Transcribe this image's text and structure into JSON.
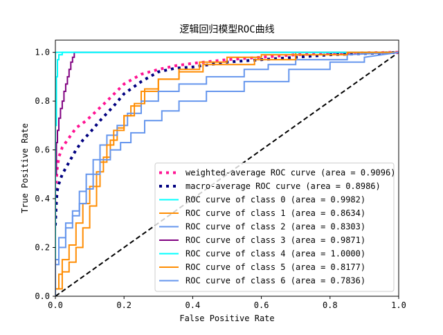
{
  "chart_data": {
    "type": "line",
    "title": "逻辑回归模型ROC曲线",
    "xlabel": "False Positive Rate",
    "ylabel": "True Positive Rate",
    "xlim": [
      0.0,
      1.0
    ],
    "ylim": [
      0.0,
      1.05
    ],
    "grid": false,
    "legend_position": "lower-right",
    "xticks": [
      {
        "value": 0.0,
        "label": "0.0"
      },
      {
        "value": 0.2,
        "label": "0.2"
      },
      {
        "value": 0.4,
        "label": "0.4"
      },
      {
        "value": 0.6,
        "label": "0.6"
      },
      {
        "value": 0.8,
        "label": "0.8"
      },
      {
        "value": 1.0,
        "label": "1.0"
      }
    ],
    "yticks": [
      {
        "value": 0.0,
        "label": "0.0"
      },
      {
        "value": 0.2,
        "label": "0.2"
      },
      {
        "value": 0.4,
        "label": "0.4"
      },
      {
        "value": 0.6,
        "label": "0.6"
      },
      {
        "value": 0.8,
        "label": "0.8"
      },
      {
        "value": 1.0,
        "label": "1.0"
      }
    ],
    "diagonal": {
      "x": [
        0,
        1
      ],
      "y": [
        0,
        1
      ],
      "color": "#000000",
      "dash": "dashed"
    },
    "series": [
      {
        "name": "weighted-average ROC curve (area = 0.9096)",
        "color": "#ff1493",
        "style": "dotted",
        "step": false,
        "x": [
          0.0,
          0.002,
          0.005,
          0.01,
          0.02,
          0.04,
          0.06,
          0.09,
          0.12,
          0.15,
          0.2,
          0.25,
          0.3,
          0.35,
          0.4,
          0.5,
          0.6,
          0.7,
          0.8,
          0.9,
          1.0
        ],
        "y": [
          0.32,
          0.45,
          0.52,
          0.57,
          0.61,
          0.65,
          0.69,
          0.72,
          0.76,
          0.8,
          0.87,
          0.91,
          0.93,
          0.945,
          0.955,
          0.97,
          0.98,
          0.99,
          0.995,
          0.998,
          1.0
        ]
      },
      {
        "name": "macro-average ROC curve (area = 0.8986)",
        "color": "#000080",
        "style": "dotted",
        "step": false,
        "x": [
          0.0,
          0.002,
          0.005,
          0.01,
          0.02,
          0.04,
          0.06,
          0.08,
          0.1,
          0.13,
          0.17,
          0.2,
          0.25,
          0.3,
          0.35,
          0.4,
          0.5,
          0.6,
          0.7,
          0.8,
          0.9,
          1.0
        ],
        "y": [
          0.29,
          0.36,
          0.43,
          0.46,
          0.5,
          0.55,
          0.6,
          0.64,
          0.67,
          0.72,
          0.78,
          0.83,
          0.88,
          0.92,
          0.935,
          0.94,
          0.96,
          0.97,
          0.98,
          0.99,
          0.995,
          1.0
        ]
      },
      {
        "name": "ROC curve of class 0 (area = 0.9982)",
        "color": "#00ffff",
        "style": "solid",
        "step": true,
        "x": [
          0.0,
          0.0,
          0.003,
          0.003,
          0.006,
          0.006,
          0.01,
          0.01,
          0.02,
          0.02,
          1.0
        ],
        "y": [
          0.0,
          0.7,
          0.7,
          0.9,
          0.9,
          0.97,
          0.97,
          0.99,
          0.99,
          1.0,
          1.0
        ]
      },
      {
        "name": "ROC curve of class 1 (area = 0.8634)",
        "color": "#ff8c00",
        "style": "solid",
        "step": true,
        "x": [
          0.0,
          0.0,
          0.01,
          0.01,
          0.02,
          0.02,
          0.04,
          0.04,
          0.06,
          0.06,
          0.08,
          0.08,
          0.1,
          0.1,
          0.12,
          0.12,
          0.14,
          0.14,
          0.16,
          0.16,
          0.18,
          0.18,
          0.2,
          0.2,
          0.22,
          0.22,
          0.25,
          0.25,
          0.3,
          0.3,
          0.36,
          0.36,
          0.42,
          0.42,
          0.5,
          0.5,
          0.6,
          0.6,
          0.7,
          0.7,
          0.82,
          0.82,
          1.0
        ],
        "y": [
          0.0,
          0.03,
          0.03,
          0.09,
          0.09,
          0.15,
          0.15,
          0.21,
          0.21,
          0.3,
          0.3,
          0.38,
          0.38,
          0.45,
          0.45,
          0.51,
          0.51,
          0.57,
          0.57,
          0.64,
          0.64,
          0.69,
          0.69,
          0.74,
          0.74,
          0.78,
          0.78,
          0.84,
          0.84,
          0.89,
          0.89,
          0.93,
          0.93,
          0.96,
          0.96,
          0.98,
          0.98,
          0.99,
          0.99,
          1.0,
          1.0,
          1.0,
          1.0
        ]
      },
      {
        "name": "ROC curve of class 2 (area = 0.8303)",
        "color": "#6495ed",
        "style": "solid",
        "step": true,
        "x": [
          0.0,
          0.0,
          0.01,
          0.01,
          0.03,
          0.03,
          0.05,
          0.05,
          0.07,
          0.07,
          0.09,
          0.09,
          0.11,
          0.11,
          0.13,
          0.13,
          0.15,
          0.15,
          0.18,
          0.18,
          0.21,
          0.21,
          0.25,
          0.25,
          0.3,
          0.3,
          0.36,
          0.36,
          0.44,
          0.44,
          0.55,
          0.55,
          0.62,
          0.62,
          0.7,
          0.7,
          0.85,
          0.85,
          1.0
        ],
        "y": [
          0.0,
          0.13,
          0.13,
          0.2,
          0.2,
          0.28,
          0.28,
          0.35,
          0.35,
          0.43,
          0.43,
          0.5,
          0.5,
          0.56,
          0.56,
          0.62,
          0.62,
          0.66,
          0.66,
          0.7,
          0.7,
          0.75,
          0.75,
          0.8,
          0.8,
          0.84,
          0.84,
          0.87,
          0.87,
          0.9,
          0.9,
          0.93,
          0.93,
          0.95,
          0.95,
          0.97,
          0.97,
          0.99,
          1.0
        ]
      },
      {
        "name": "ROC curve of class 3 (area = 0.9871)",
        "color": "#800080",
        "style": "solid",
        "step": true,
        "x": [
          0.0,
          0.0,
          0.003,
          0.003,
          0.006,
          0.006,
          0.01,
          0.01,
          0.015,
          0.015,
          0.02,
          0.02,
          0.025,
          0.025,
          0.03,
          0.03,
          0.035,
          0.035,
          0.04,
          0.04,
          0.045,
          0.045,
          0.05,
          0.05,
          0.055,
          0.055,
          1.0
        ],
        "y": [
          0.0,
          0.5,
          0.5,
          0.63,
          0.63,
          0.68,
          0.68,
          0.73,
          0.73,
          0.77,
          0.77,
          0.8,
          0.8,
          0.84,
          0.84,
          0.87,
          0.87,
          0.9,
          0.9,
          0.93,
          0.93,
          0.96,
          0.96,
          0.98,
          0.98,
          1.0,
          1.0
        ]
      },
      {
        "name": "ROC curve of class 4 (area = 1.0000)",
        "color": "#00ffff",
        "style": "solid",
        "step": true,
        "x": [
          0.0,
          0.0,
          1.0
        ],
        "y": [
          0.0,
          1.0,
          1.0
        ]
      },
      {
        "name": "ROC curve of class 5 (area = 0.8177)",
        "color": "#ff8c00",
        "style": "solid",
        "step": true,
        "x": [
          0.0,
          0.0,
          0.02,
          0.02,
          0.04,
          0.04,
          0.06,
          0.06,
          0.08,
          0.08,
          0.1,
          0.1,
          0.12,
          0.12,
          0.13,
          0.13,
          0.15,
          0.15,
          0.17,
          0.17,
          0.2,
          0.2,
          0.23,
          0.23,
          0.26,
          0.26,
          0.3,
          0.3,
          0.36,
          0.36,
          0.43,
          0.43,
          0.58,
          0.58,
          0.7,
          0.7,
          0.85,
          0.85,
          1.0
        ],
        "y": [
          0.0,
          0.03,
          0.03,
          0.1,
          0.1,
          0.14,
          0.14,
          0.2,
          0.2,
          0.28,
          0.28,
          0.37,
          0.37,
          0.45,
          0.45,
          0.55,
          0.55,
          0.62,
          0.62,
          0.68,
          0.68,
          0.74,
          0.74,
          0.79,
          0.79,
          0.85,
          0.85,
          0.89,
          0.89,
          0.92,
          0.92,
          0.95,
          0.95,
          0.97,
          0.97,
          0.99,
          0.99,
          1.0,
          1.0
        ]
      },
      {
        "name": "ROC curve of class 6 (area = 0.7836)",
        "color": "#6495ed",
        "style": "solid",
        "step": true,
        "x": [
          0.0,
          0.0,
          0.01,
          0.01,
          0.03,
          0.03,
          0.05,
          0.05,
          0.07,
          0.07,
          0.09,
          0.09,
          0.11,
          0.11,
          0.13,
          0.13,
          0.16,
          0.16,
          0.19,
          0.19,
          0.22,
          0.22,
          0.26,
          0.26,
          0.31,
          0.31,
          0.36,
          0.36,
          0.44,
          0.44,
          0.55,
          0.55,
          0.68,
          0.68,
          0.8,
          0.8,
          0.9,
          0.9,
          1.0
        ],
        "y": [
          0.0,
          0.15,
          0.15,
          0.24,
          0.24,
          0.3,
          0.3,
          0.33,
          0.33,
          0.38,
          0.38,
          0.44,
          0.44,
          0.5,
          0.5,
          0.56,
          0.56,
          0.6,
          0.6,
          0.63,
          0.63,
          0.67,
          0.67,
          0.72,
          0.72,
          0.76,
          0.76,
          0.8,
          0.8,
          0.84,
          0.84,
          0.88,
          0.88,
          0.93,
          0.93,
          0.96,
          0.96,
          0.98,
          1.0
        ]
      }
    ]
  }
}
